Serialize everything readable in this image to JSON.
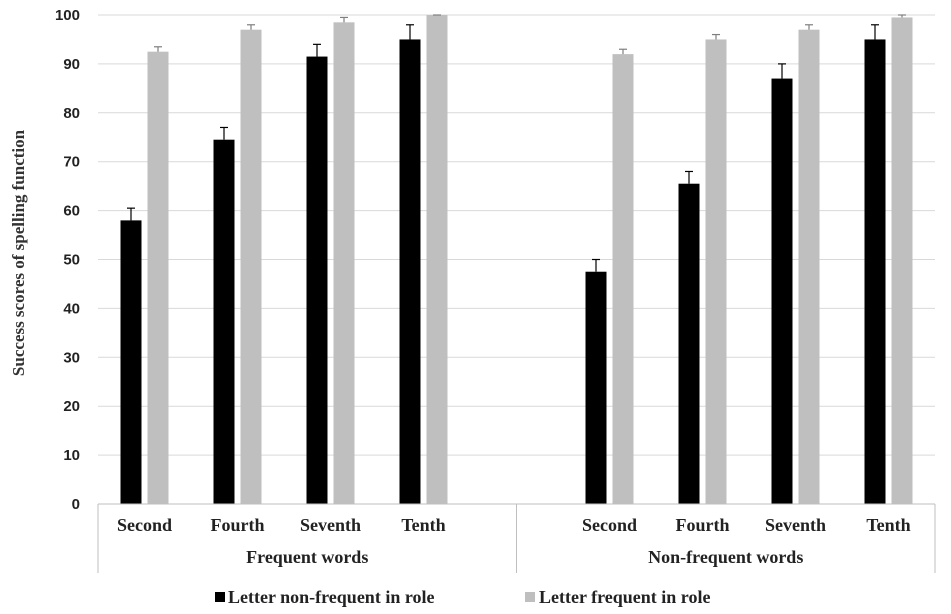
{
  "chart_data": {
    "type": "bar",
    "ylabel": "Success scores of spelling function",
    "ylim": [
      0,
      100
    ],
    "yticks": [
      0,
      10,
      20,
      30,
      40,
      50,
      60,
      70,
      80,
      90,
      100
    ],
    "grid": true,
    "legend_position": "bottom",
    "groups": [
      {
        "label": "Frequent words",
        "categories": [
          "Second",
          "Fourth",
          "Seventh",
          "Tenth"
        ]
      },
      {
        "label": "Non-frequent words",
        "categories": [
          "Second",
          "Fourth",
          "Seventh",
          "Tenth"
        ]
      }
    ],
    "series": [
      {
        "name": "Letter non-frequent in role",
        "color": "#000000",
        "values": [
          58,
          74.5,
          91.5,
          95,
          47.5,
          65.5,
          87,
          95
        ],
        "errors": [
          2.5,
          2.5,
          2.5,
          3,
          2.5,
          2.5,
          3,
          3
        ]
      },
      {
        "name": "Letter frequent in role",
        "color": "#bfbfbf",
        "values": [
          92.5,
          97,
          98.5,
          100,
          92,
          95,
          97,
          99.5
        ],
        "errors": [
          1,
          1,
          1,
          0.5,
          1,
          1,
          1,
          0.5
        ]
      }
    ]
  }
}
